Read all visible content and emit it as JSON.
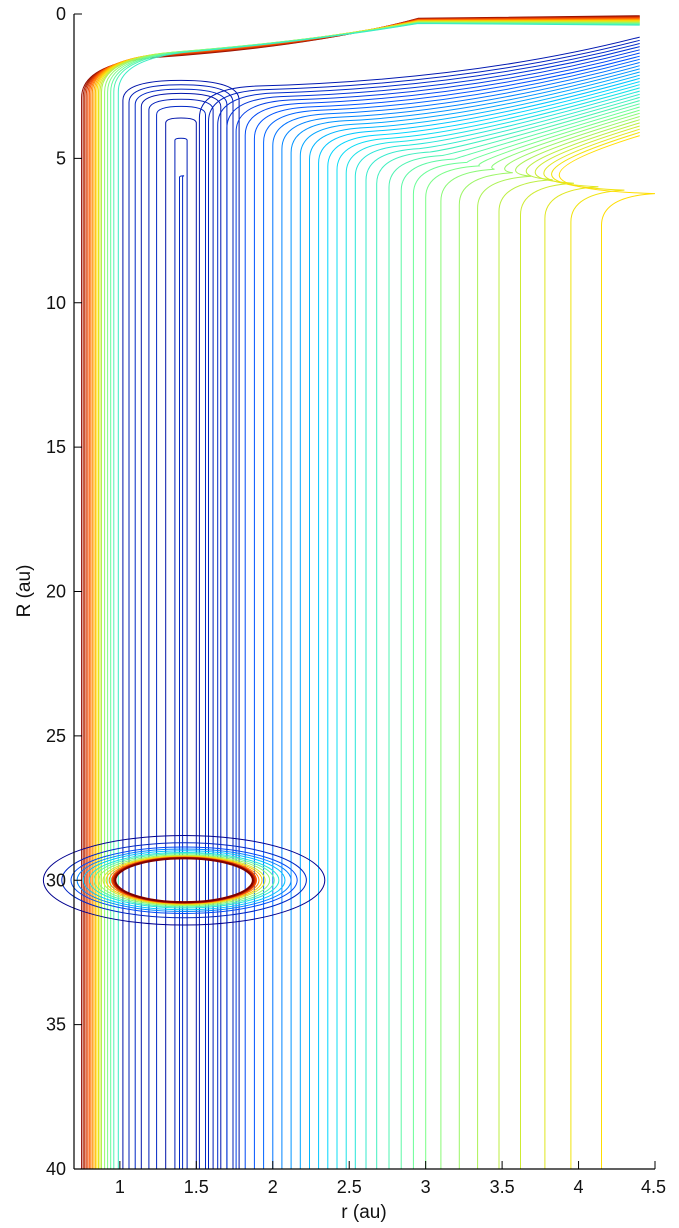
{
  "chart_data": {
    "type": "contour",
    "xlabel": "r (au)",
    "ylabel": "R (au)",
    "xlim": [
      0.7,
      4.5
    ],
    "ylim": [
      0,
      40
    ],
    "y_reversed": true,
    "x_ticks": [
      1,
      1.5,
      2,
      2.5,
      3,
      3.5,
      4,
      4.5
    ],
    "x_tick_labels": [
      "1",
      "1.5",
      "2",
      "2.5",
      "3",
      "3.5",
      "4",
      "4.5"
    ],
    "y_ticks": [
      0,
      5,
      10,
      15,
      20,
      25,
      30,
      35,
      40
    ],
    "y_tick_labels": [
      "0",
      "5",
      "10",
      "15",
      "20",
      "25",
      "30",
      "35",
      "40"
    ],
    "grid": false,
    "colormap": "jet",
    "colormap_stops": [
      "#00008f",
      "#0050ff",
      "#00d8ff",
      "#70ff90",
      "#ffe000",
      "#ff5000",
      "#800000"
    ],
    "data_extent": {
      "r_max": 4.4,
      "R_max": 40
    },
    "repulsive_wall": {
      "r_values": [
        0.75,
        0.76,
        0.77,
        0.78,
        0.79,
        0.8,
        0.81,
        0.82,
        0.83,
        0.84,
        0.85,
        0.86,
        0.87,
        0.88,
        0.9,
        0.92,
        0.94,
        0.96,
        0.99
      ],
      "surface_R_start": [
        1.7,
        1.68,
        1.66,
        1.64,
        1.62,
        1.6,
        1.58,
        1.56,
        1.55,
        1.54,
        1.53,
        1.52,
        1.52,
        1.51,
        1.5,
        1.5,
        1.5,
        1.5,
        1.5
      ]
    },
    "attractive_well": {
      "r_values": [
        1.02,
        1.06,
        1.1,
        1.14,
        1.19,
        1.24,
        1.3,
        1.36,
        1.39
      ],
      "R_apex": [
        2.3,
        2.45,
        2.6,
        2.75,
        2.95,
        3.2,
        3.6,
        4.3,
        5.6
      ]
    },
    "outer_lines": {
      "r_values": [
        1.52,
        1.58,
        1.64,
        1.7,
        1.76,
        1.82,
        1.88,
        1.94,
        2.0,
        2.06,
        2.12,
        2.18,
        2.24,
        2.3,
        2.36,
        2.42,
        2.48,
        2.54,
        2.61,
        2.68,
        2.76,
        2.84,
        2.92,
        3.0,
        3.1,
        3.22,
        3.34,
        3.48,
        3.62,
        3.78,
        3.95,
        4.15
      ]
    },
    "ring": {
      "center": [
        1.42,
        30.0
      ],
      "radii_r": [
        0.92,
        0.8,
        0.74,
        0.7,
        0.66,
        0.62,
        0.59,
        0.56,
        0.53,
        0.51,
        0.49,
        0.47,
        0.46,
        0.45
      ],
      "radii_R": [
        1.55,
        1.3,
        1.15,
        1.08,
        1.02,
        0.96,
        0.92,
        0.88,
        0.85,
        0.82,
        0.8,
        0.78,
        0.77,
        0.76
      ]
    }
  }
}
